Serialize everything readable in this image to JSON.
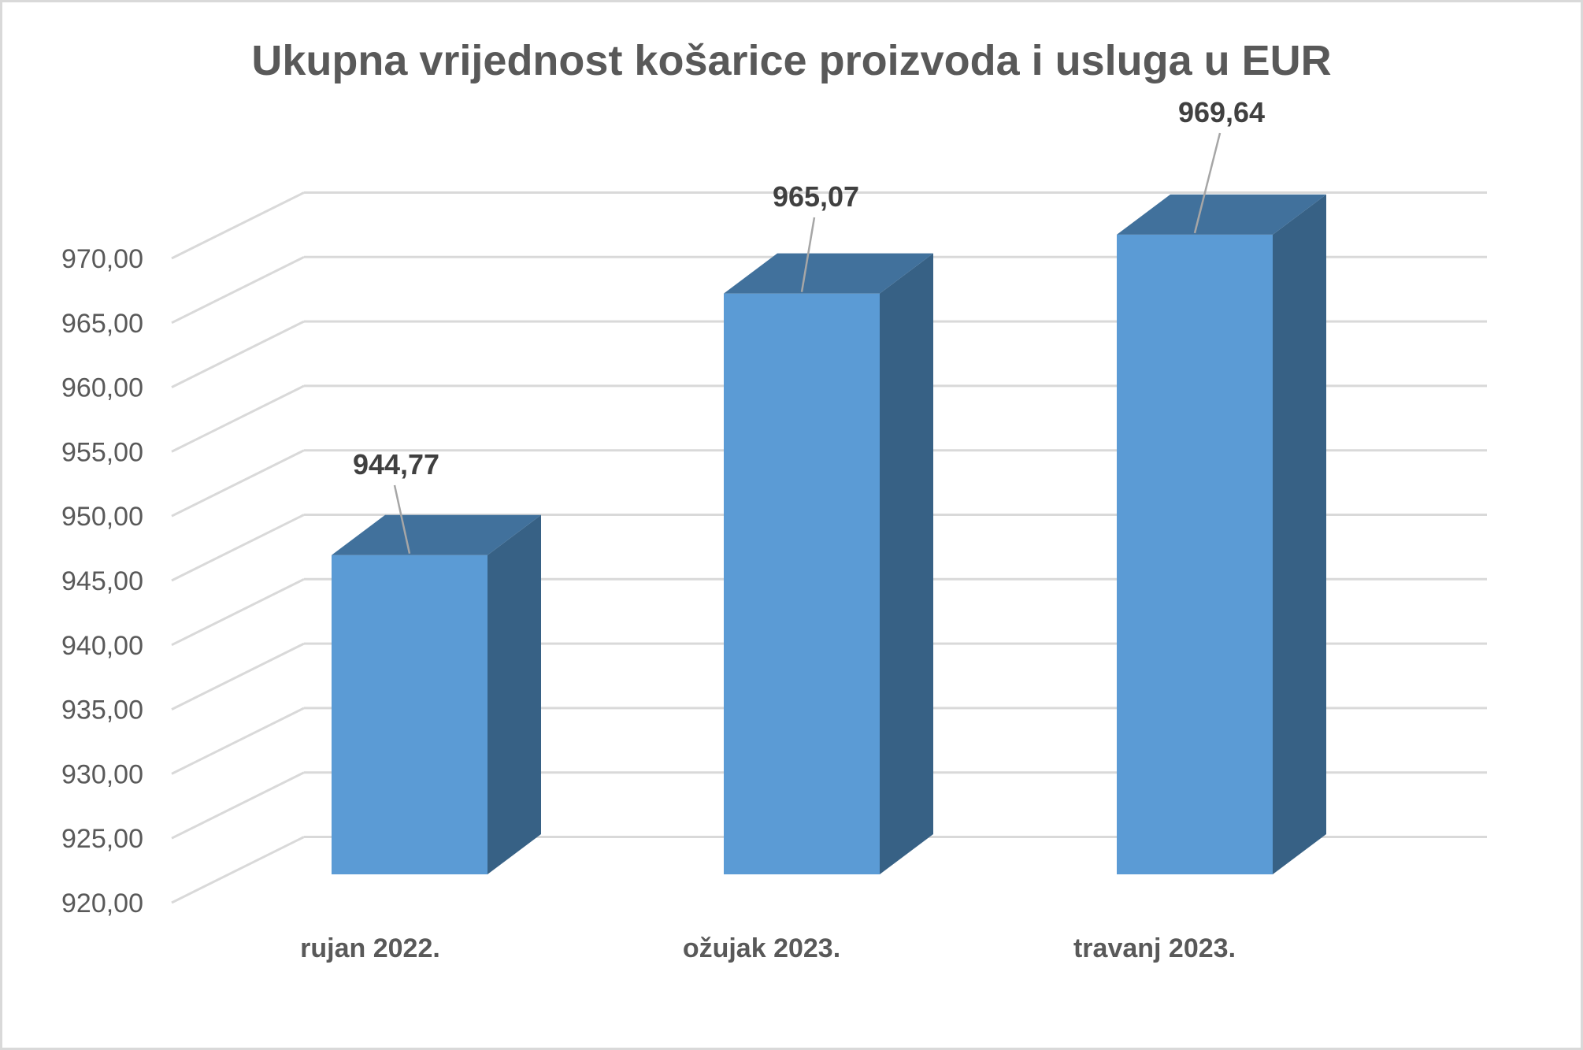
{
  "chart_data": {
    "type": "bar",
    "title": "Ukupna vrijednost košarice proizvoda i usluga u EUR",
    "xlabel": "",
    "ylabel": "",
    "categories": [
      "rujan 2022.",
      "ožujak 2023.",
      "travanj 2023."
    ],
    "values": [
      944.77,
      965.07,
      969.64
    ],
    "data_labels": [
      "944,77",
      "965,07",
      "969,64"
    ],
    "ylim": [
      920,
      970
    ],
    "yticks": [
      920,
      925,
      930,
      935,
      940,
      945,
      950,
      955,
      960,
      965,
      970
    ],
    "ytick_labels": [
      "920,00",
      "925,00",
      "930,00",
      "935,00",
      "940,00",
      "945,00",
      "950,00",
      "955,00",
      "960,00",
      "965,00",
      "970,00"
    ],
    "grid": true,
    "legend": "none",
    "style": "3d-column",
    "colors": {
      "bar_front": "#5b9bd5",
      "bar_top": "#41719c",
      "bar_side": "#376185",
      "grid": "#d9d9d9",
      "text": "#595959"
    }
  }
}
